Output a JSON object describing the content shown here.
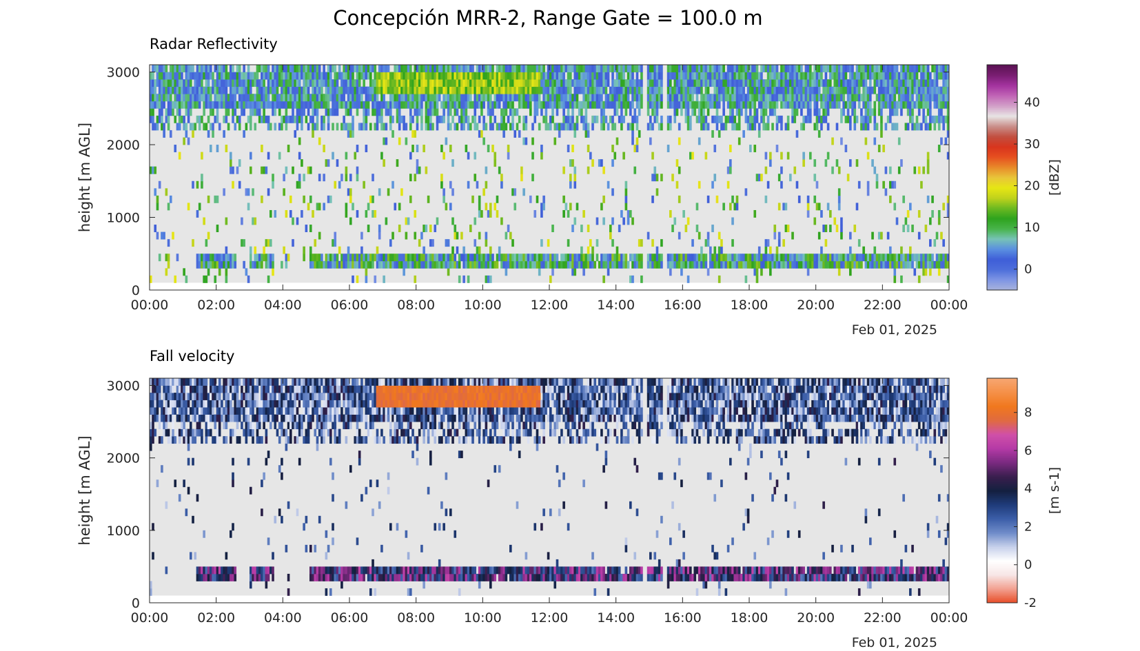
{
  "figure": {
    "title": "Concepción MRR-2, Range Gate = 100.0 m",
    "background": "#ffffff",
    "no_data_color": "#e6e6e6"
  },
  "chart_data": [
    {
      "type": "heatmap",
      "title": "Radar Reflectivity",
      "xlabel": "",
      "ylabel": "height [m AGL]",
      "date_label": "Feb 01, 2025",
      "x_ticks": [
        "00:00",
        "02:00",
        "04:00",
        "06:00",
        "08:00",
        "10:00",
        "12:00",
        "14:00",
        "16:00",
        "18:00",
        "20:00",
        "22:00",
        "00:00"
      ],
      "y_ticks": [
        "0",
        "1000",
        "2000",
        "3000"
      ],
      "xlim_hours": [
        0,
        24
      ],
      "ylim": [
        0,
        3000
      ],
      "range_gate_m": 100,
      "data_height_range": [
        100,
        3100
      ],
      "colorbar": {
        "label": "[dBZ]",
        "range": [
          -5,
          49
        ],
        "ticks": [
          "0",
          "10",
          "20",
          "30",
          "40"
        ],
        "tick_values": [
          0,
          10,
          20,
          30,
          40
        ],
        "colors": [
          "#a9b3dc",
          "#7f96e4",
          "#4e6fdb",
          "#3f5ed8",
          "#5a8fe0",
          "#77c3b7",
          "#48b44a",
          "#2ea31e",
          "#6cb921",
          "#bfd21c",
          "#e6e614",
          "#e8c53a",
          "#e88a2a",
          "#e65020",
          "#d8351d",
          "#c24f40",
          "#c98f8a",
          "#e8e4e4",
          "#d2a0c8",
          "#c165b6",
          "#a3339f",
          "#7a1e72",
          "#5a1253"
        ]
      },
      "features": [
        {
          "name": "upper layer",
          "height_range_m": [
            2200,
            3100
          ],
          "value_range": [
            0,
            12
          ],
          "note": "continuous echo band, mostly blue/green"
        },
        {
          "name": "strong echo",
          "time_range_h": [
            6.8,
            11.7
          ],
          "height_range_m": [
            2700,
            3000
          ],
          "value_range": [
            12,
            20
          ]
        },
        {
          "name": "low band",
          "height_range_m": [
            300,
            500
          ],
          "value_range": [
            0,
            16
          ],
          "gaps_h": [
            [
              0,
              1.4
            ],
            [
              2.6,
              3.0
            ],
            [
              3.75,
              4.8
            ]
          ]
        },
        {
          "name": "data gaps",
          "times_h": [
            14.85,
            15.45
          ]
        }
      ]
    },
    {
      "type": "heatmap",
      "title": "Fall velocity",
      "xlabel": "",
      "ylabel": "height [m AGL]",
      "date_label": "Feb 01, 2025",
      "x_ticks": [
        "00:00",
        "02:00",
        "04:00",
        "06:00",
        "08:00",
        "10:00",
        "12:00",
        "14:00",
        "16:00",
        "18:00",
        "20:00",
        "22:00",
        "00:00"
      ],
      "y_ticks": [
        "0",
        "1000",
        "2000",
        "3000"
      ],
      "xlim_hours": [
        0,
        24
      ],
      "ylim": [
        0,
        3000
      ],
      "range_gate_m": 100,
      "data_height_range": [
        100,
        3100
      ],
      "colorbar": {
        "label": "[m s-1]",
        "range": [
          -2,
          9.8
        ],
        "ticks": [
          "-2",
          "0",
          "2",
          "4",
          "6",
          "8"
        ],
        "tick_values": [
          -2,
          0,
          2,
          4,
          6,
          8
        ],
        "colors": [
          "#e84c26",
          "#f2a090",
          "#f7e6e6",
          "#ffffff",
          "#c7d0eb",
          "#6f8cc9",
          "#3c5ea8",
          "#1f3c7a",
          "#14203f",
          "#3a1f4e",
          "#7a2a80",
          "#b43aa6",
          "#d050a8",
          "#e06a40",
          "#f0781e",
          "#f59048",
          "#f7a672"
        ]
      },
      "features": [
        {
          "name": "upper layer",
          "height_range_m": [
            2200,
            3100
          ],
          "value_range": [
            0.5,
            4.5
          ]
        },
        {
          "name": "fast fall",
          "time_range_h": [
            6.8,
            11.7
          ],
          "height_range_m": [
            2700,
            3000
          ],
          "value_range": [
            7.5,
            8.5
          ]
        },
        {
          "name": "low band",
          "height_range_m": [
            300,
            500
          ],
          "value_range": [
            2,
            6.5
          ]
        }
      ]
    }
  ]
}
